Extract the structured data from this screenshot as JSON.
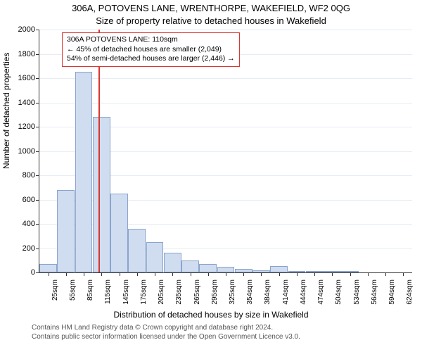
{
  "title_line1": "306A, POTOVENS LANE, WRENTHORPE, WAKEFIELD, WF2 0QG",
  "title_line2": "Size of property relative to detached houses in Wakefield",
  "y_axis_label": "Number of detached properties",
  "x_axis_label": "Distribution of detached houses by size in Wakefield",
  "footer_line1": "Contains HM Land Registry data © Crown copyright and database right 2024.",
  "footer_line2": "Contains public sector information licensed under the Open Government Licence v3.0.",
  "chart": {
    "type": "histogram",
    "background_color": "#ffffff",
    "grid_color": "#e6ecf2",
    "axis_color": "#333333",
    "bar_fill": "#d0ddf0",
    "bar_border": "#8aa4cc",
    "ylim": [
      0,
      2000
    ],
    "ytick_step": 200,
    "x_categories": [
      "25sqm",
      "55sqm",
      "85sqm",
      "115sqm",
      "145sqm",
      "175sqm",
      "205sqm",
      "235sqm",
      "265sqm",
      "295sqm",
      "325sqm",
      "354sqm",
      "384sqm",
      "414sqm",
      "444sqm",
      "474sqm",
      "504sqm",
      "534sqm",
      "564sqm",
      "594sqm",
      "624sqm"
    ],
    "values": [
      70,
      680,
      1650,
      1280,
      650,
      360,
      250,
      160,
      100,
      70,
      45,
      30,
      20,
      55,
      10,
      10,
      5,
      5,
      0,
      0,
      0
    ],
    "bar_width_ratio": 0.98,
    "tick_fontsize": 11,
    "label_fontsize": 12,
    "title_fontsize": 13
  },
  "marker": {
    "value_sqm": 110,
    "color": "#d9362f"
  },
  "callout": {
    "border_color": "#d9362f",
    "line1": "306A POTOVENS LANE: 110sqm",
    "line2": "← 45% of detached houses are smaller (2,049)",
    "line3": "54% of semi-detached houses are larger (2,446) →"
  }
}
